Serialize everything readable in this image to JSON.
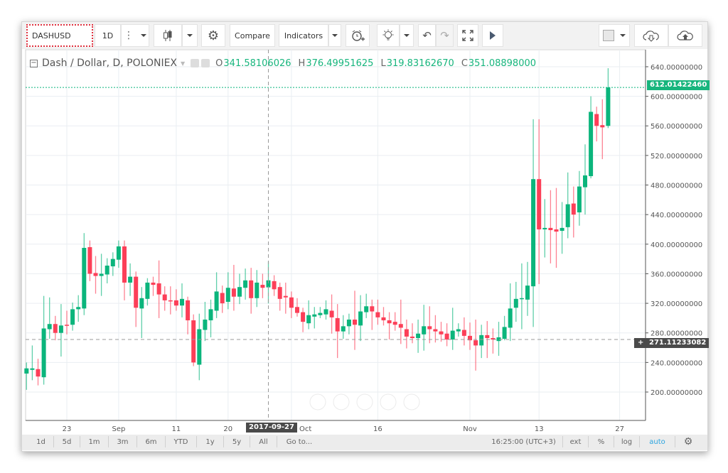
{
  "toolbar": {
    "symbol": "DASHUSD",
    "interval": "1D",
    "compare_label": "Compare",
    "indicators_label": "Indicators",
    "icons": [
      "more-dots-icon",
      "candles-icon",
      "gear-icon",
      "alarm-clock-plus-icon",
      "lightbulb-icon",
      "undo-icon",
      "redo-icon",
      "fullscreen-icon",
      "play-icon",
      "color-square-icon",
      "cloud-download-icon",
      "cloud-upload-icon"
    ]
  },
  "legend": {
    "title": "Dash / Dollar, D, POLONIEX",
    "o_label": "O",
    "o": "341.58106026",
    "h_label": "H",
    "h": "376.49951625",
    "l_label": "L",
    "l": "319.83162670",
    "c_label": "C",
    "c": "351.08898000"
  },
  "price_axis": {
    "last_price": "612.01422460",
    "crosshair_price": "271.11233082",
    "crosshair_plus": "+"
  },
  "time_axis": {
    "crosshair_date": "2017-09-27"
  },
  "bottom_bar": {
    "ranges": [
      "1d",
      "5d",
      "1m",
      "3m",
      "6m",
      "YTD",
      "1y",
      "5y",
      "All"
    ],
    "goto": "Go to...",
    "time": "16:25:00 (UTC+3)",
    "ext": "ext",
    "percent": "%",
    "log": "log",
    "auto": "auto"
  },
  "colors": {
    "up": "#0bb57c",
    "down": "#fc3f58",
    "accent": "#2aa4e0",
    "last_price_bg": "#17b57d",
    "crosshair_bg": "#4a4a4a"
  },
  "chart_data": {
    "type": "candlestick",
    "ylim": [
      180,
      650
    ],
    "grid": true,
    "y_ticks": [
      "200.00000000",
      "240.00000000",
      "280.00000000",
      "320.00000000",
      "360.00000000",
      "400.00000000",
      "440.00000000",
      "480.00000000",
      "520.00000000",
      "560.00000000",
      "600.00000000",
      "640.00000000"
    ],
    "x_ticks": [
      {
        "date": "2017-08-23",
        "label": "23"
      },
      {
        "date": "2017-09-01",
        "label": "Sep"
      },
      {
        "date": "2017-09-11",
        "label": "11"
      },
      {
        "date": "2017-09-20",
        "label": "20"
      },
      {
        "date": "2017-10-01",
        "label": "Oct"
      },
      {
        "date": "2017-10-16",
        "label": "16"
      },
      {
        "date": "2017-11-01",
        "label": "Nov"
      },
      {
        "date": "2017-11-13",
        "label": "13"
      },
      {
        "date": "2017-11-27",
        "label": "27"
      }
    ],
    "columns": [
      "date",
      "open",
      "high",
      "low",
      "close"
    ],
    "candles": [
      [
        "2017-08-16",
        225,
        240,
        203,
        232
      ],
      [
        "2017-08-17",
        230,
        263,
        216,
        232
      ],
      [
        "2017-08-18",
        231,
        245,
        209,
        221
      ],
      [
        "2017-08-19",
        220,
        330,
        210,
        286
      ],
      [
        "2017-08-20",
        285,
        328,
        272,
        292
      ],
      [
        "2017-08-21",
        292,
        303,
        270,
        280
      ],
      [
        "2017-08-22",
        280,
        319,
        248,
        290
      ],
      [
        "2017-08-23",
        291,
        310,
        278,
        290
      ],
      [
        "2017-08-24",
        291,
        321,
        283,
        312
      ],
      [
        "2017-08-25",
        312,
        331,
        295,
        315
      ],
      [
        "2017-08-26",
        313,
        415,
        304,
        395
      ],
      [
        "2017-08-27",
        396,
        405,
        350,
        360
      ],
      [
        "2017-08-28",
        361,
        384,
        333,
        357
      ],
      [
        "2017-08-29",
        357,
        387,
        330,
        360
      ],
      [
        "2017-08-30",
        359,
        381,
        347,
        371
      ],
      [
        "2017-08-31",
        370,
        389,
        357,
        380
      ],
      [
        "2017-09-01",
        379,
        405,
        368,
        397
      ],
      [
        "2017-09-02",
        397,
        405,
        324,
        348
      ],
      [
        "2017-09-03",
        348,
        374,
        330,
        356
      ],
      [
        "2017-09-04",
        356,
        363,
        288,
        314
      ],
      [
        "2017-09-05",
        313,
        342,
        273,
        327
      ],
      [
        "2017-09-06",
        326,
        354,
        317,
        348
      ],
      [
        "2017-09-07",
        348,
        356,
        330,
        345
      ],
      [
        "2017-09-08",
        347,
        378,
        300,
        332
      ],
      [
        "2017-09-09",
        332,
        343,
        310,
        324
      ],
      [
        "2017-09-10",
        324,
        343,
        305,
        323
      ],
      [
        "2017-09-11",
        324,
        339,
        310,
        317
      ],
      [
        "2017-09-12",
        317,
        347,
        301,
        326
      ],
      [
        "2017-09-13",
        324,
        329,
        278,
        297
      ],
      [
        "2017-09-14",
        297,
        305,
        235,
        240
      ],
      [
        "2017-09-15",
        237,
        306,
        216,
        285
      ],
      [
        "2017-09-16",
        284,
        322,
        269,
        298
      ],
      [
        "2017-09-17",
        297,
        325,
        274,
        312
      ],
      [
        "2017-09-18",
        310,
        362,
        300,
        336
      ],
      [
        "2017-09-19",
        334,
        344,
        307,
        320
      ],
      [
        "2017-09-20",
        322,
        362,
        312,
        341
      ],
      [
        "2017-09-21",
        340,
        372,
        310,
        329
      ],
      [
        "2017-09-22",
        329,
        360,
        319,
        342
      ],
      [
        "2017-09-23",
        341,
        367,
        325,
        351
      ],
      [
        "2017-09-24",
        351,
        368,
        306,
        327
      ],
      [
        "2017-09-25",
        327,
        365,
        315,
        348
      ],
      [
        "2017-09-26",
        345,
        360,
        327,
        341
      ],
      [
        "2017-09-27",
        341.58,
        376.5,
        319.83,
        351.09
      ],
      [
        "2017-09-28",
        350,
        358,
        330,
        339
      ],
      [
        "2017-09-29",
        342,
        348,
        310,
        326
      ],
      [
        "2017-09-30",
        330,
        348,
        306,
        328
      ],
      [
        "2017-10-01",
        328,
        336,
        300,
        314
      ],
      [
        "2017-10-02",
        315,
        327,
        302,
        307
      ],
      [
        "2017-10-03",
        308,
        314,
        281,
        295
      ],
      [
        "2017-10-04",
        293,
        324,
        285,
        304
      ],
      [
        "2017-10-05",
        302,
        315,
        286,
        305
      ],
      [
        "2017-10-06",
        304,
        315,
        300,
        307
      ],
      [
        "2017-10-07",
        305,
        324,
        298,
        312
      ],
      [
        "2017-10-08",
        310,
        332,
        279,
        301
      ],
      [
        "2017-10-09",
        300,
        319,
        246,
        282
      ],
      [
        "2017-10-10",
        282,
        304,
        272,
        289
      ],
      [
        "2017-10-11",
        289,
        306,
        278,
        298
      ],
      [
        "2017-10-12",
        298,
        337,
        257,
        291
      ],
      [
        "2017-10-13",
        290,
        331,
        269,
        309
      ],
      [
        "2017-10-14",
        308,
        333,
        300,
        316
      ],
      [
        "2017-10-15",
        316,
        325,
        284,
        309
      ],
      [
        "2017-10-16",
        308,
        325,
        291,
        301
      ],
      [
        "2017-10-17",
        301,
        315,
        290,
        297
      ],
      [
        "2017-10-18",
        297,
        308,
        271,
        293
      ],
      [
        "2017-10-19",
        295,
        308,
        283,
        291
      ],
      [
        "2017-10-20",
        292,
        325,
        265,
        287
      ],
      [
        "2017-10-21",
        285,
        298,
        259,
        275
      ],
      [
        "2017-10-22",
        275,
        293,
        266,
        273
      ],
      [
        "2017-10-23",
        273,
        298,
        253,
        279
      ],
      [
        "2017-10-24",
        278,
        318,
        256,
        289
      ],
      [
        "2017-10-25",
        289,
        316,
        266,
        285
      ],
      [
        "2017-10-26",
        285,
        304,
        267,
        282
      ],
      [
        "2017-10-27",
        282,
        295,
        268,
        278
      ],
      [
        "2017-10-28",
        279,
        293,
        262,
        271
      ],
      [
        "2017-10-29",
        271,
        314,
        257,
        283
      ],
      [
        "2017-10-30",
        282,
        293,
        275,
        285
      ],
      [
        "2017-10-31",
        284,
        301,
        263,
        276
      ],
      [
        "2017-11-01",
        276,
        294,
        257,
        270
      ],
      [
        "2017-11-02",
        270,
        298,
        229,
        263
      ],
      [
        "2017-11-03",
        263,
        291,
        246,
        277
      ],
      [
        "2017-11-04",
        277,
        296,
        246,
        273
      ],
      [
        "2017-11-05",
        273,
        286,
        252,
        271
      ],
      [
        "2017-11-06",
        269,
        295,
        249,
        274
      ],
      [
        "2017-11-07",
        272,
        303,
        270,
        288
      ],
      [
        "2017-11-08",
        287,
        347,
        269,
        313
      ],
      [
        "2017-11-09",
        314,
        349,
        295,
        326
      ],
      [
        "2017-11-10",
        326,
        374,
        285,
        327
      ],
      [
        "2017-11-11",
        325,
        376,
        303,
        344
      ],
      [
        "2017-11-12",
        343,
        569,
        288,
        488
      ],
      [
        "2017-11-13",
        488,
        569,
        346,
        420
      ],
      [
        "2017-11-14",
        420,
        461,
        382,
        422
      ],
      [
        "2017-11-15",
        422,
        473,
        374,
        419
      ],
      [
        "2017-11-16",
        420,
        476,
        368,
        417
      ],
      [
        "2017-11-17",
        418,
        457,
        387,
        422
      ],
      [
        "2017-11-18",
        423,
        497,
        408,
        454
      ],
      [
        "2017-11-19",
        455,
        478,
        409,
        440
      ],
      [
        "2017-11-20",
        443,
        499,
        425,
        478
      ],
      [
        "2017-11-21",
        477,
        535,
        440,
        493
      ],
      [
        "2017-11-22",
        492,
        600,
        489,
        579
      ],
      [
        "2017-11-23",
        576,
        586,
        539,
        560
      ],
      [
        "2017-11-24",
        561,
        596,
        515,
        558
      ],
      [
        "2017-11-25",
        560,
        638,
        557,
        612.01
      ]
    ]
  }
}
